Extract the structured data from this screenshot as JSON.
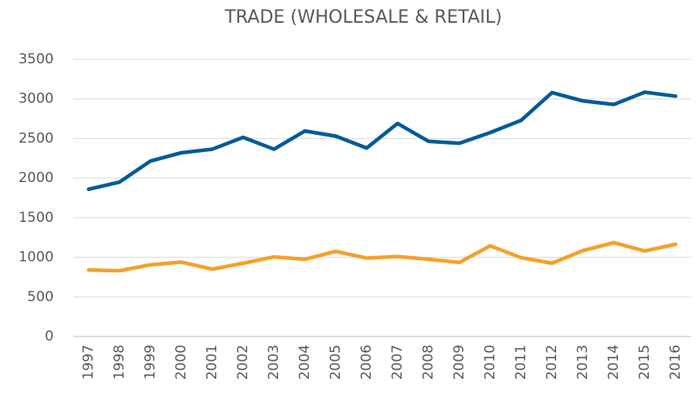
{
  "chart_data": {
    "type": "line",
    "title": "TRADE (WHOLESALE & RETAIL)",
    "categories": [
      "1997",
      "1998",
      "1999",
      "2000",
      "2001",
      "2002",
      "2003",
      "2004",
      "2005",
      "2006",
      "2007",
      "2008",
      "2009",
      "2010",
      "2011",
      "2012",
      "2013",
      "2014",
      "2015",
      "2016"
    ],
    "series": [
      {
        "color": "#005b96",
        "values": [
          1860,
          1950,
          2215,
          2320,
          2365,
          2515,
          2365,
          2595,
          2530,
          2380,
          2690,
          2465,
          2440,
          2575,
          2730,
          3080,
          2975,
          2930,
          3085,
          3035
        ]
      },
      {
        "color": "#f5a02a",
        "values": [
          840,
          830,
          905,
          940,
          850,
          925,
          1005,
          975,
          1075,
          990,
          1010,
          975,
          935,
          1145,
          995,
          925,
          1085,
          1185,
          1080,
          1165
        ]
      }
    ],
    "ylim": [
      0,
      3500
    ],
    "yticks": [
      0,
      500,
      1000,
      1500,
      2000,
      2500,
      3000,
      3500
    ],
    "grid": true
  }
}
